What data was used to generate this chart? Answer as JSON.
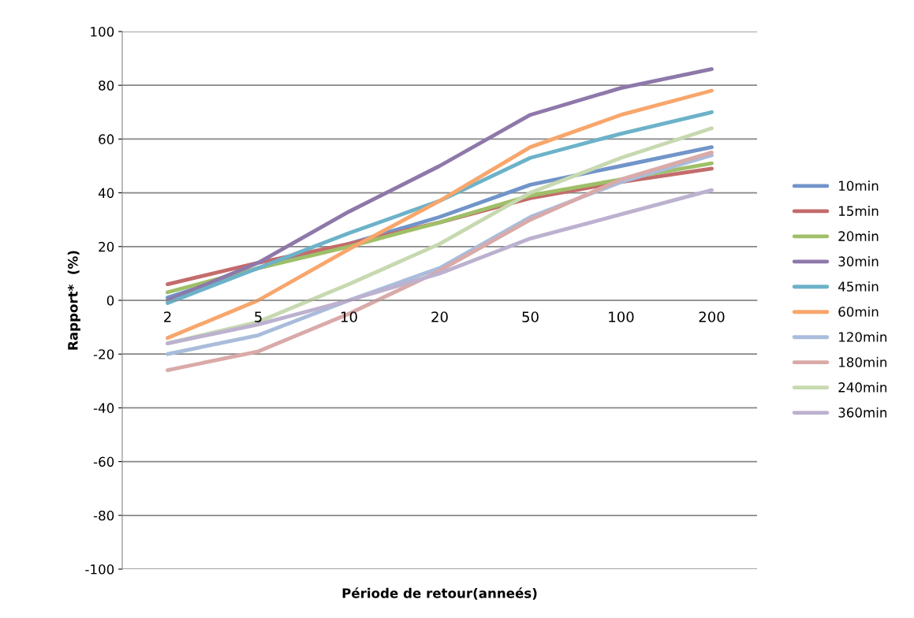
{
  "chart_data": {
    "type": "line",
    "xlabel": "Période de retour(anneés)",
    "ylabel": "Rapport*  (%)",
    "categories": [
      "2",
      "5",
      "10",
      "20",
      "50",
      "100",
      "200"
    ],
    "ylim": [
      -100,
      100
    ],
    "yticks": [
      -100,
      -80,
      -60,
      -40,
      -20,
      0,
      20,
      40,
      60,
      80,
      100
    ],
    "grid": "y",
    "legend": "right",
    "marker": "none",
    "line_style": "solid",
    "series": [
      {
        "name": "10min",
        "color": "#7194c9",
        "values": [
          1,
          12,
          21,
          31,
          43,
          50,
          57
        ]
      },
      {
        "name": "15min",
        "color": "#c46b6b",
        "values": [
          6,
          14,
          21,
          29,
          38,
          44,
          49
        ]
      },
      {
        "name": "20min",
        "color": "#9fbf68",
        "values": [
          3,
          12,
          20,
          29,
          39,
          45,
          51
        ]
      },
      {
        "name": "30min",
        "color": "#8e78aa",
        "values": [
          0,
          14,
          33,
          50,
          69,
          79,
          86
        ]
      },
      {
        "name": "45min",
        "color": "#6cb2c9",
        "values": [
          -1,
          12,
          25,
          37,
          53,
          62,
          70
        ]
      },
      {
        "name": "60min",
        "color": "#f8a66c",
        "values": [
          -14,
          0,
          19,
          37,
          57,
          69,
          78
        ]
      },
      {
        "name": "120min",
        "color": "#a9bcdb",
        "values": [
          -20,
          -13,
          0,
          12,
          31,
          44,
          54
        ]
      },
      {
        "name": "180min",
        "color": "#d9aaa8",
        "values": [
          -26,
          -19,
          -5,
          11,
          30,
          45,
          55
        ]
      },
      {
        "name": "240min",
        "color": "#c7d9b0",
        "values": [
          -16,
          -8,
          6,
          21,
          40,
          53,
          64
        ]
      },
      {
        "name": "360min",
        "color": "#bcb1cf",
        "values": [
          -16,
          -9,
          0,
          10,
          23,
          32,
          41
        ]
      }
    ]
  }
}
